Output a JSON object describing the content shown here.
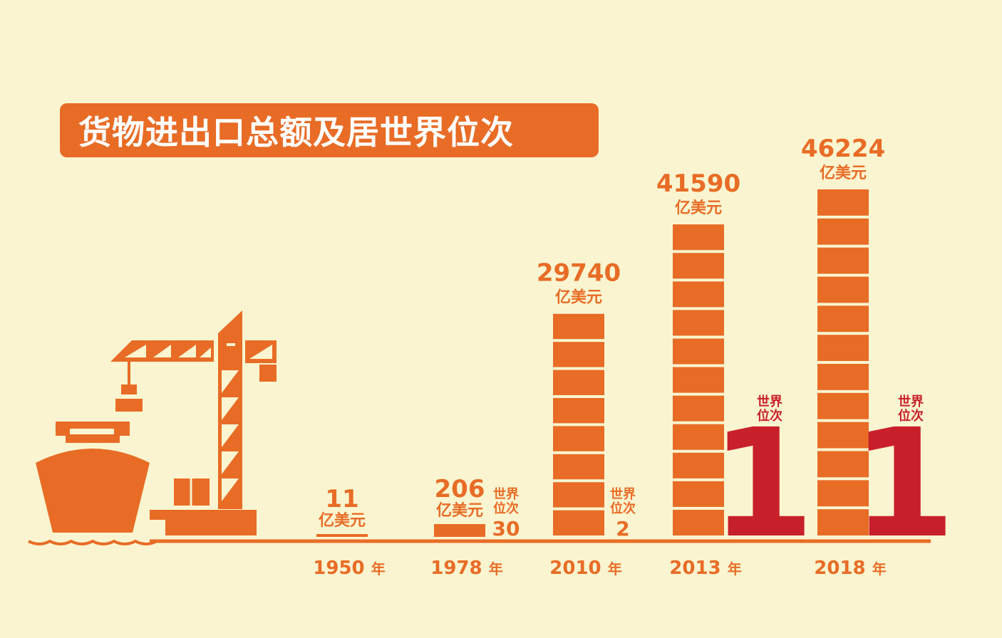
{
  "title": "货物进出口总额及居世界位次",
  "colors": {
    "background": "#faf5d0",
    "accent": "#e86c26",
    "rank_first": "#c8202a",
    "title_text": "#ffffff"
  },
  "chart_data": {
    "type": "bar",
    "title": "货物进出口总额及居世界位次",
    "categories": [
      "1950年",
      "1978年",
      "2010年",
      "2013年",
      "2018年"
    ],
    "year_labels": [
      "1950",
      "1978",
      "2010",
      "2013",
      "2018"
    ],
    "year_suffix": "年",
    "values": [
      11,
      206,
      29740,
      41590,
      46224
    ],
    "value_labels": [
      "11",
      "206",
      "29740",
      "41590",
      "46224"
    ],
    "unit": "亿美元",
    "world_rank": [
      null,
      30,
      2,
      1,
      1
    ],
    "rank_labels": [
      "",
      "30",
      "2",
      "1",
      "1"
    ],
    "rank_caption_line1": "世界",
    "rank_caption_line2": "位次",
    "ylim": [
      0,
      46224
    ],
    "grid": false,
    "legend": "none",
    "decorations": [
      "ship-icon",
      "crane-icon"
    ]
  }
}
